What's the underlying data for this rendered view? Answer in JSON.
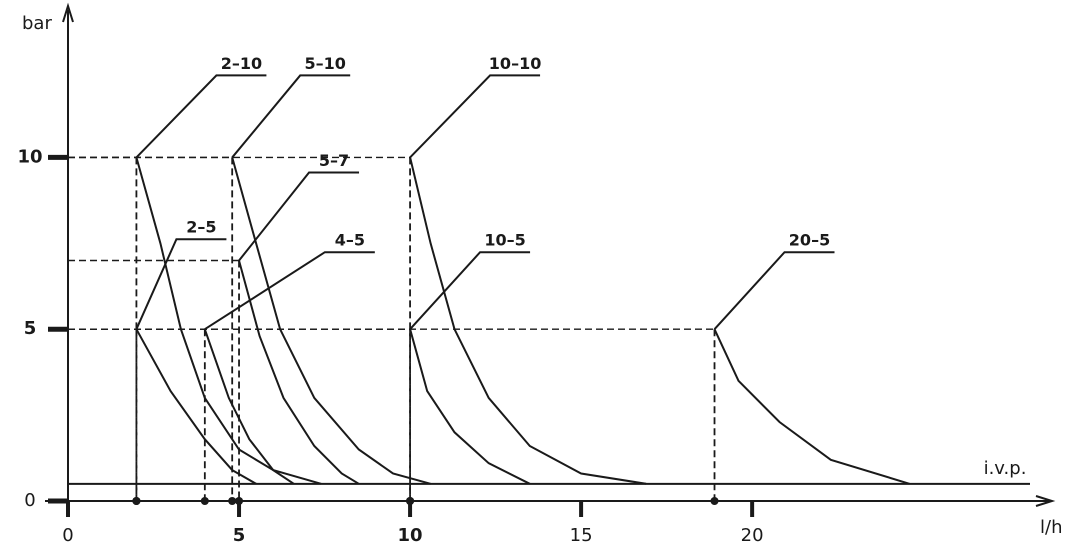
{
  "chart_data": {
    "type": "line",
    "y_label": "bar",
    "x_label": "l/h",
    "xlim": [
      0,
      29
    ],
    "ylim": [
      0,
      14
    ],
    "xticks": [
      0,
      5,
      10,
      15,
      20
    ],
    "yticks": [
      0,
      5,
      10
    ],
    "color": "#1a1a1a",
    "reference_line": {
      "label": "i.v.p.",
      "value": 0.5
    },
    "series": [
      {
        "name": "2–10",
        "x": [
          2,
          2.7,
          3.3,
          4,
          5,
          6,
          7.4
        ],
        "values": [
          10,
          7.5,
          5,
          3,
          1.5,
          0.9,
          0.5
        ]
      },
      {
        "name": "5–10",
        "x": [
          4.8,
          5.5,
          6.2,
          7.2,
          8.5,
          9.5,
          10.6
        ],
        "values": [
          10,
          7.5,
          5,
          3,
          1.5,
          0.8,
          0.5
        ]
      },
      {
        "name": "10–10",
        "x": [
          10,
          10.6,
          11.3,
          12.3,
          13.5,
          15,
          16.9
        ],
        "values": [
          10,
          7.5,
          5,
          3,
          1.6,
          0.8,
          0.5
        ]
      },
      {
        "name": "5–7",
        "x": [
          5,
          5.6,
          6.3,
          7.2,
          8,
          8.5
        ],
        "values": [
          7,
          4.8,
          3,
          1.6,
          0.8,
          0.5
        ]
      },
      {
        "name": "2–5",
        "x": [
          2,
          3,
          4,
          4.8,
          5.5
        ],
        "values": [
          5,
          3.2,
          1.8,
          0.9,
          0.5
        ]
      },
      {
        "name": "4–5",
        "x": [
          4,
          4.7,
          5.3,
          6,
          6.6
        ],
        "values": [
          5,
          3,
          1.8,
          0.9,
          0.5
        ]
      },
      {
        "name": "10–5",
        "x": [
          10,
          10.5,
          11.3,
          12.3,
          13.5
        ],
        "values": [
          5,
          3.2,
          2,
          1.1,
          0.5
        ]
      },
      {
        "name": "20–5",
        "x": [
          18.9,
          19.6,
          20.8,
          22.3,
          24.6
        ],
        "values": [
          5,
          3.5,
          2.3,
          1.2,
          0.5
        ]
      }
    ]
  }
}
